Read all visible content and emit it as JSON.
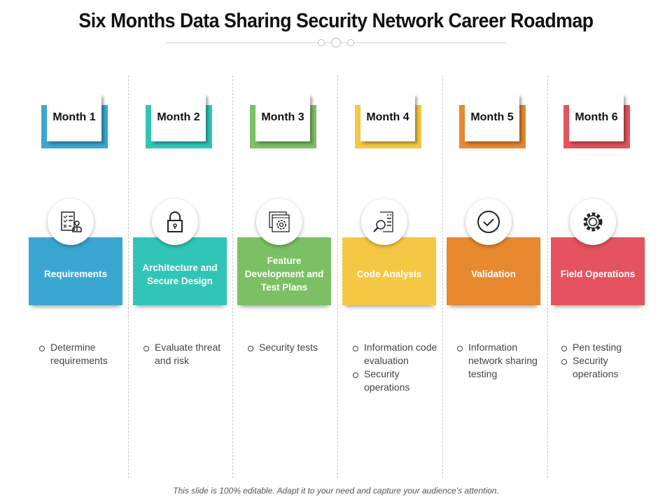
{
  "title": "Six Months Data Sharing Security Network Career Roadmap",
  "footer": "This slide is 100% editable. Adapt it to your need and capture your audience’s attention.",
  "columns": [
    {
      "month": "Month 1",
      "label": "Requirements",
      "color": "#3aa7d3",
      "icon": "requirements-checklist-icon",
      "bullets": [
        "Determine requirements"
      ]
    },
    {
      "month": "Month 2",
      "label": "Architecture and Secure Design",
      "color": "#31c5b7",
      "icon": "padlock-icon",
      "bullets": [
        "Evaluate threat and risk"
      ]
    },
    {
      "month": "Month 3",
      "label": "Feature Development and Test Plans",
      "color": "#7bc064",
      "icon": "window-gear-icon",
      "bullets": [
        "Security tests"
      ]
    },
    {
      "month": "Month 4",
      "label": "Code Analysis",
      "color": "#f5c843",
      "icon": "code-magnifier-icon",
      "bullets": [
        "Information code evaluation",
        "Security operations"
      ]
    },
    {
      "month": "Month 5",
      "label": "Validation",
      "color": "#e8882f",
      "icon": "checkmark-circle-icon",
      "bullets": [
        "Information network sharing testing"
      ]
    },
    {
      "month": "Month 6",
      "label": "Field Operations",
      "color": "#e4535f",
      "icon": "gear-sync-icon",
      "bullets": [
        "Pen testing",
        "Security operations"
      ]
    }
  ]
}
